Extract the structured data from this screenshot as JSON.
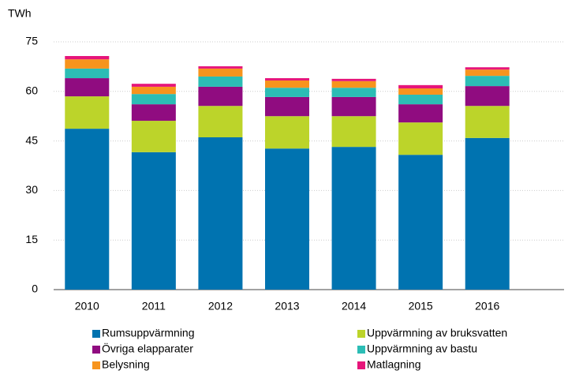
{
  "chart_data": {
    "type": "stacked_bar",
    "y_label": "TWh",
    "categories": [
      "2010",
      "2011",
      "2012",
      "2013",
      "2014",
      "2015",
      "2016"
    ],
    "series": [
      {
        "name": "Rumsuppvärmning",
        "color": "#0073b0",
        "values": [
          48.7,
          41.6,
          46.1,
          42.7,
          43.2,
          40.8,
          45.9
        ]
      },
      {
        "name": "Uppvärmning av bruksvatten",
        "color": "#bcd42a",
        "values": [
          9.8,
          9.5,
          9.5,
          9.8,
          9.3,
          9.8,
          9.7
        ]
      },
      {
        "name": "Övriga elapparater",
        "color": "#900c80",
        "values": [
          5.5,
          5.0,
          5.8,
          5.8,
          5.8,
          5.5,
          6.0
        ]
      },
      {
        "name": "Uppvärmning av bastu",
        "color": "#2cbdb5",
        "values": [
          2.9,
          3.1,
          3.1,
          2.8,
          2.8,
          2.9,
          3.1
        ]
      },
      {
        "name": "Belysning",
        "color": "#f7941d",
        "values": [
          2.8,
          2.2,
          2.4,
          2.2,
          2.0,
          1.9,
          1.9
        ]
      },
      {
        "name": "Matlagning",
        "color": "#e6157a",
        "values": [
          1.0,
          0.9,
          0.7,
          0.7,
          0.7,
          1.0,
          0.7
        ]
      }
    ],
    "ylim": [
      0,
      75
    ],
    "yticks": [
      0,
      15,
      30,
      45,
      60,
      75
    ],
    "grid": true
  }
}
